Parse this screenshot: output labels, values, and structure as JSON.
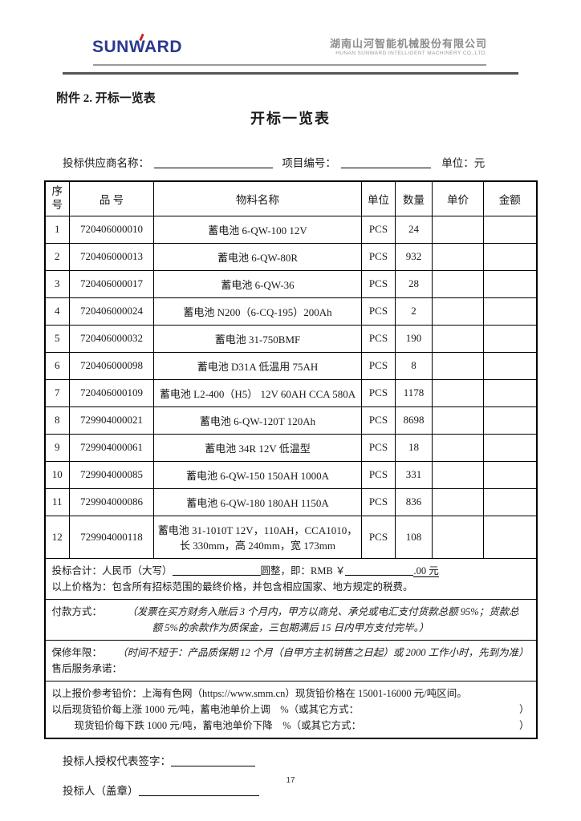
{
  "header": {
    "logo_text": "SUNWARD",
    "company_cn": "湖南山河智能机械股份有限公司",
    "company_en": "HUNAN SUNWARD INTELLIGENT MACHINERY CO.,LTD."
  },
  "titles": {
    "attachment": "附件 2. 开标一览表",
    "main": "开标一览表"
  },
  "info": {
    "supplier_label": "投标供应商名称：",
    "project_label": "项目编号：",
    "unit_label": "单位：元"
  },
  "table": {
    "headers": [
      "序号",
      "品  号",
      "物料名称",
      "单位",
      "数量",
      "单价",
      "金额"
    ],
    "rows": [
      [
        "1",
        "720406000010",
        "蓄电池 6-QW-100 12V",
        "PCS",
        "24",
        "",
        ""
      ],
      [
        "2",
        "720406000013",
        "蓄电池 6-QW-80R",
        "PCS",
        "932",
        "",
        ""
      ],
      [
        "3",
        "720406000017",
        "蓄电池 6-QW-36",
        "PCS",
        "28",
        "",
        ""
      ],
      [
        "4",
        "720406000024",
        "蓄电池 N200（6-CQ-195）200Ah",
        "PCS",
        "2",
        "",
        ""
      ],
      [
        "5",
        "720406000032",
        "蓄电池 31-750BMF",
        "PCS",
        "190",
        "",
        ""
      ],
      [
        "6",
        "720406000098",
        "蓄电池 D31A 低温用 75AH",
        "PCS",
        "8",
        "",
        ""
      ],
      [
        "7",
        "720406000109",
        "蓄电池 L2-400（H5） 12V 60AH CCA 580A",
        "PCS",
        "1178",
        "",
        ""
      ],
      [
        "8",
        "729904000021",
        "蓄电池 6-QW-120T 120Ah",
        "PCS",
        "8698",
        "",
        ""
      ],
      [
        "9",
        "729904000061",
        "蓄电池 34R 12V 低温型",
        "PCS",
        "18",
        "",
        ""
      ],
      [
        "10",
        "729904000085",
        "蓄电池 6-QW-150  150AH 1000A",
        "PCS",
        "331",
        "",
        ""
      ],
      [
        "11",
        "729904000086",
        "蓄电池 6-QW-180  180AH 1150A",
        "PCS",
        "836",
        "",
        ""
      ],
      [
        "12",
        "729904000118",
        "蓄电池 31-1010T 12V，110AH，CCA1010，长 330mm，高 240mm，宽 173mm",
        "PCS",
        "108",
        "",
        ""
      ]
    ]
  },
  "summary": {
    "line1_a": "投标合计：人民币（大写）",
    "line1_b": "圆整，即：RMB ￥",
    "line1_c": ".00 元",
    "line2": "以上价格为：包含所有招标范围的最终价格，并包含相应国家、地方规定的税费。"
  },
  "payment": {
    "label": "付款方式：",
    "line1": "（发票在买方财务入账后 3 个月内，甲方以商兑、承兑或电汇支付货款总额 95%；货款总",
    "line2": "额 5%的余款作为质保金，三包期满后 15 日内甲方支付完毕。）"
  },
  "warranty": {
    "label": "保修年限：",
    "content": "（时间不短于：产品质保期 12 个月（自甲方主机销售之日起）或 2000 工作小时，先到为准）",
    "after_sale_label": "售后服务承诺："
  },
  "lead_price": {
    "line1": "以上报价参考铅价：上海有色网（https://www.smm.cn）现货铅价格在 15001-16000 元/吨区间。",
    "line2": "以后现货铅价每上涨 1000 元/吨，蓄电池单价上调　%（或其它方式：",
    "line2_close": "）",
    "line3": "现货铅价每下跌 1000 元/吨，蓄电池单价下降　%（或其它方式：",
    "line3_close": "）"
  },
  "signature": {
    "sign_label": "投标人授权代表签字：",
    "seal_label": "投标人（盖章）"
  },
  "page_number": "17"
}
